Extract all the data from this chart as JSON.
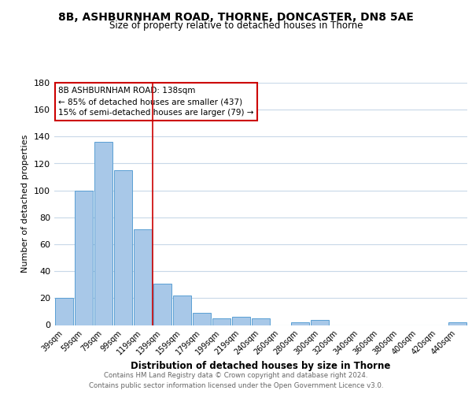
{
  "title": "8B, ASHBURNHAM ROAD, THORNE, DONCASTER, DN8 5AE",
  "subtitle": "Size of property relative to detached houses in Thorne",
  "xlabel": "Distribution of detached houses by size in Thorne",
  "ylabel": "Number of detached properties",
  "bar_labels": [
    "39sqm",
    "59sqm",
    "79sqm",
    "99sqm",
    "119sqm",
    "139sqm",
    "159sqm",
    "179sqm",
    "199sqm",
    "219sqm",
    "240sqm",
    "260sqm",
    "280sqm",
    "300sqm",
    "320sqm",
    "340sqm",
    "360sqm",
    "380sqm",
    "400sqm",
    "420sqm",
    "440sqm"
  ],
  "bar_values": [
    20,
    100,
    136,
    115,
    71,
    31,
    22,
    9,
    5,
    6,
    5,
    0,
    2,
    4,
    0,
    0,
    0,
    0,
    0,
    0,
    2
  ],
  "bar_color": "#a8c8e8",
  "bar_edge_color": "#5a9fd4",
  "highlight_line_color": "#cc0000",
  "annotation_line1": "8B ASHBURNHAM ROAD: 138sqm",
  "annotation_line2": "← 85% of detached houses are smaller (437)",
  "annotation_line3": "15% of semi-detached houses are larger (79) →",
  "ylim": [
    0,
    180
  ],
  "yticks": [
    0,
    20,
    40,
    60,
    80,
    100,
    120,
    140,
    160,
    180
  ],
  "footer_line1": "Contains HM Land Registry data © Crown copyright and database right 2024.",
  "footer_line2": "Contains public sector information licensed under the Open Government Licence v3.0.",
  "bg_color": "#ffffff",
  "grid_color": "#c8d8e8",
  "annotation_box_color": "#ffffff",
  "annotation_box_edge": "#cc0000"
}
